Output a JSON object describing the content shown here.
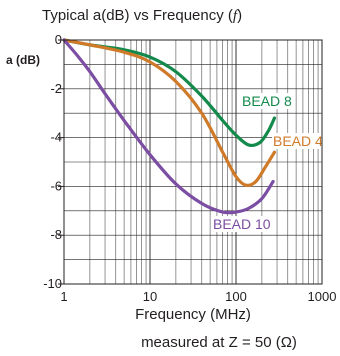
{
  "chart_data": {
    "type": "line",
    "title": "Typical a(dB) vs Frequency (f)",
    "title_main": "Typical a(dB) vs Frequency",
    "title_symbol": "f",
    "ylabel": "a (dB)",
    "xlabel": "Frequency (MHz)",
    "note": "measured at Z = 50 (Ω)",
    "x_scale": "log",
    "xlim": [
      1,
      1000
    ],
    "ylim": [
      -10,
      0
    ],
    "x_ticks": [
      {
        "value": 1,
        "label": "1"
      },
      {
        "value": 10,
        "label": "10"
      },
      {
        "value": 100,
        "label": "100"
      },
      {
        "value": 1000,
        "label": "1000"
      }
    ],
    "y_ticks": [
      {
        "value": 0,
        "label": "0"
      },
      {
        "value": -2,
        "label": "-2"
      },
      {
        "value": -4,
        "label": "-4"
      },
      {
        "value": -6,
        "label": "-6"
      },
      {
        "value": -8,
        "label": "-8"
      },
      {
        "value": -10,
        "label": "-10"
      }
    ],
    "grid": true,
    "series": [
      {
        "name": "BEAD 8",
        "color": "#138a4c",
        "points": [
          [
            1,
            0
          ],
          [
            2,
            -0.2
          ],
          [
            5,
            -0.4
          ],
          [
            10,
            -0.7
          ],
          [
            20,
            -1.3
          ],
          [
            40,
            -2.3
          ],
          [
            70,
            -3.3
          ],
          [
            100,
            -3.9
          ],
          [
            140,
            -4.3
          ],
          [
            190,
            -4.2
          ],
          [
            240,
            -3.7
          ],
          [
            280,
            -3.2
          ]
        ]
      },
      {
        "name": "BEAD 4",
        "color": "#cf7a29",
        "points": [
          [
            1,
            0
          ],
          [
            2,
            -0.2
          ],
          [
            5,
            -0.5
          ],
          [
            10,
            -0.9
          ],
          [
            20,
            -1.7
          ],
          [
            40,
            -3.0
          ],
          [
            70,
            -4.6
          ],
          [
            100,
            -5.6
          ],
          [
            130,
            -5.95
          ],
          [
            170,
            -5.8
          ],
          [
            220,
            -5.2
          ],
          [
            280,
            -4.6
          ]
        ]
      },
      {
        "name": "BEAD 10",
        "color": "#7b4ea3",
        "points": [
          [
            1,
            0
          ],
          [
            1.4,
            -0.6
          ],
          [
            2,
            -1.3
          ],
          [
            3,
            -2.2
          ],
          [
            5,
            -3.3
          ],
          [
            10,
            -4.7
          ],
          [
            20,
            -5.9
          ],
          [
            40,
            -6.7
          ],
          [
            70,
            -7.05
          ],
          [
            100,
            -7.05
          ],
          [
            140,
            -6.9
          ],
          [
            200,
            -6.5
          ],
          [
            270,
            -5.8
          ]
        ]
      }
    ]
  }
}
